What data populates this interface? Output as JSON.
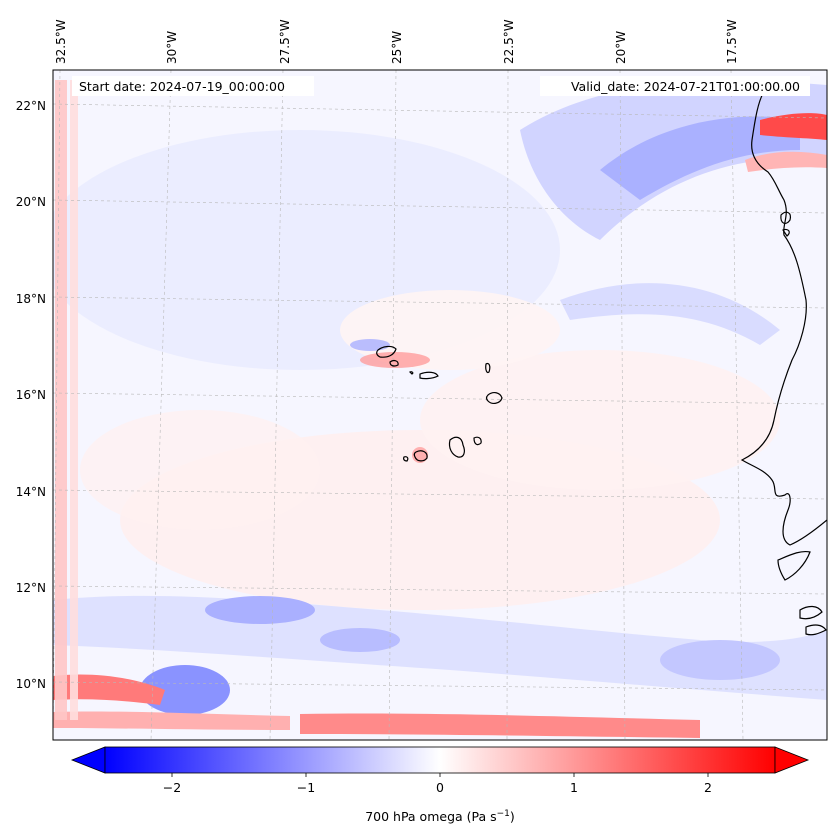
{
  "map": {
    "projection": "Lambert Conformal",
    "region": "Eastern tropical Atlantic, Cape Verde Islands and West African coast",
    "field": "700 hPa vertical velocity (omega)",
    "start_label": "Start date: 2024-07-19_00:00:00",
    "valid_label": "Valid_date: 2024-07-21T01:00:00.00",
    "lon_ticks": [
      "32.5°W",
      "30°W",
      "27.5°W",
      "25°W",
      "22.5°W",
      "20°W",
      "17.5°W"
    ],
    "lat_ticks": [
      "22°N",
      "20°N",
      "18°N",
      "16°N",
      "14°N",
      "12°N",
      "10°N"
    ],
    "gridlines": true,
    "coastline_color": "#000000"
  },
  "colorbar": {
    "colormap": "bwr",
    "min": -2.5,
    "max": 2.5,
    "extend": "both",
    "ticks": [
      "−2",
      "−1",
      "0",
      "1",
      "2"
    ],
    "label_prefix": "700 hPa omega (Pa s",
    "label_exp": "−1",
    "label_suffix": ")",
    "colors": {
      "low": "#0000ff",
      "mid": "#ffffff",
      "high": "#ff0000"
    }
  }
}
